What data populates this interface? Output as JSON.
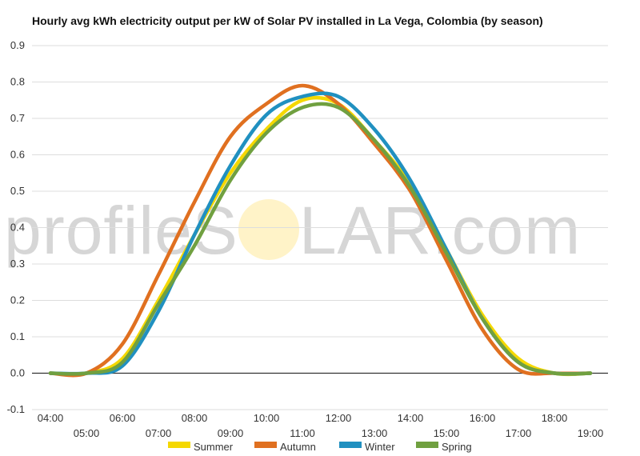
{
  "chart_data": {
    "type": "line",
    "title": "Hourly avg kWh electricity output per kW of Solar PV installed in La Vega, Colombia (by season)",
    "xlabel": "",
    "ylabel": "",
    "ylim": [
      -0.1,
      0.9
    ],
    "yticks": [
      "0.9",
      "0.8",
      "0.7",
      "0.6",
      "0.5",
      "0.4",
      "0.3",
      "0.2",
      "0.1",
      "0.0",
      "-0.1"
    ],
    "x": [
      "04:00",
      "05:00",
      "06:00",
      "07:00",
      "08:00",
      "09:00",
      "10:00",
      "11:00",
      "12:00",
      "13:00",
      "14:00",
      "15:00",
      "16:00",
      "17:00",
      "18:00",
      "19:00"
    ],
    "grid": true,
    "legend_position": "bottom",
    "watermark": "profileSOLAR.com",
    "series": [
      {
        "name": "Summer",
        "color": "#f5d800",
        "values": [
          0.0,
          0.0,
          0.04,
          0.2,
          0.38,
          0.55,
          0.67,
          0.75,
          0.74,
          0.64,
          0.52,
          0.34,
          0.16,
          0.04,
          0.0,
          0.0
        ]
      },
      {
        "name": "Autumn",
        "color": "#e07020",
        "values": [
          0.0,
          0.0,
          0.08,
          0.27,
          0.47,
          0.65,
          0.74,
          0.79,
          0.74,
          0.63,
          0.5,
          0.31,
          0.12,
          0.01,
          0.0,
          0.0
        ]
      },
      {
        "name": "Winter",
        "color": "#2090c0",
        "values": [
          0.0,
          0.0,
          0.02,
          0.17,
          0.38,
          0.57,
          0.71,
          0.76,
          0.76,
          0.67,
          0.53,
          0.34,
          0.15,
          0.03,
          0.0,
          0.0
        ]
      },
      {
        "name": "Spring",
        "color": "#70a040",
        "values": [
          0.0,
          0.0,
          0.03,
          0.19,
          0.35,
          0.53,
          0.66,
          0.73,
          0.73,
          0.64,
          0.51,
          0.33,
          0.15,
          0.03,
          0.0,
          0.0
        ]
      }
    ]
  }
}
